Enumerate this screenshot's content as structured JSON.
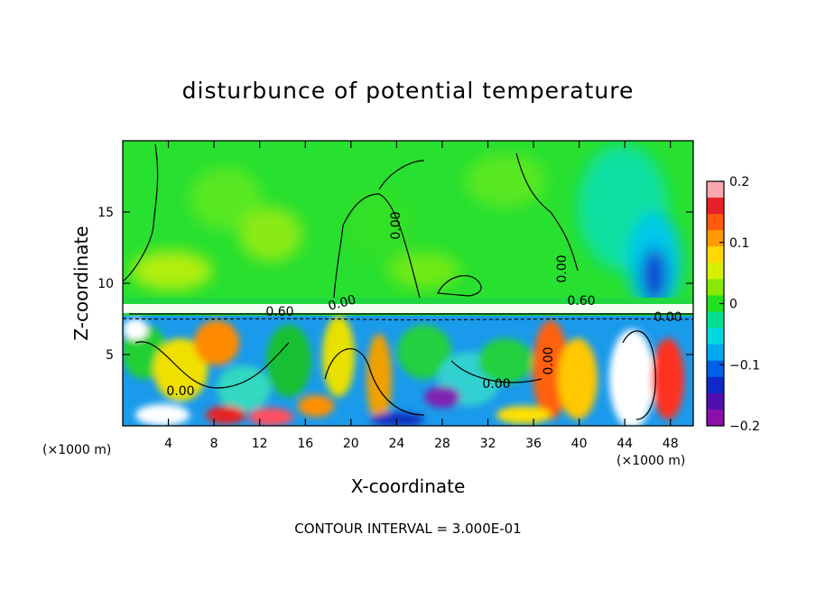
{
  "chart_data": {
    "type": "heatmap",
    "title": "disturbunce of potential temperature",
    "xlabel": "X-coordinate",
    "ylabel": "Z-coordinate",
    "x_unit_left": "(×1000 m)",
    "x_unit_right": "(×1000 m)",
    "xlim": [
      0,
      50
    ],
    "ylim": [
      0,
      20
    ],
    "x_ticks": [
      4,
      8,
      12,
      16,
      20,
      24,
      28,
      32,
      36,
      40,
      44,
      48
    ],
    "y_ticks": [
      5,
      10,
      15
    ],
    "colorbar": {
      "range": [
        -0.2,
        0.2
      ],
      "tick_values": [
        0.2,
        0.1,
        0,
        -0.1,
        -0.2
      ],
      "tick_labels": [
        "0.2",
        "0.1",
        "0",
        "−0.1",
        "−0.2"
      ],
      "colors": [
        "#f7a8b0",
        "#e8202a",
        "#ff5a10",
        "#ff9a00",
        "#ffd800",
        "#d8f000",
        "#88e800",
        "#20e020",
        "#00e090",
        "#00d8e0",
        "#00a8f0",
        "#0060e8",
        "#1028c8",
        "#5010b0",
        "#8a10a8"
      ]
    },
    "contour_labels": [
      "0.00",
      "0.00",
      "0.60",
      "0.60",
      "0.00",
      "0.00",
      "0.00",
      "0.00",
      "0.00"
    ],
    "footnote": "CONTOUR INTERVAL = 3.000E-01"
  }
}
